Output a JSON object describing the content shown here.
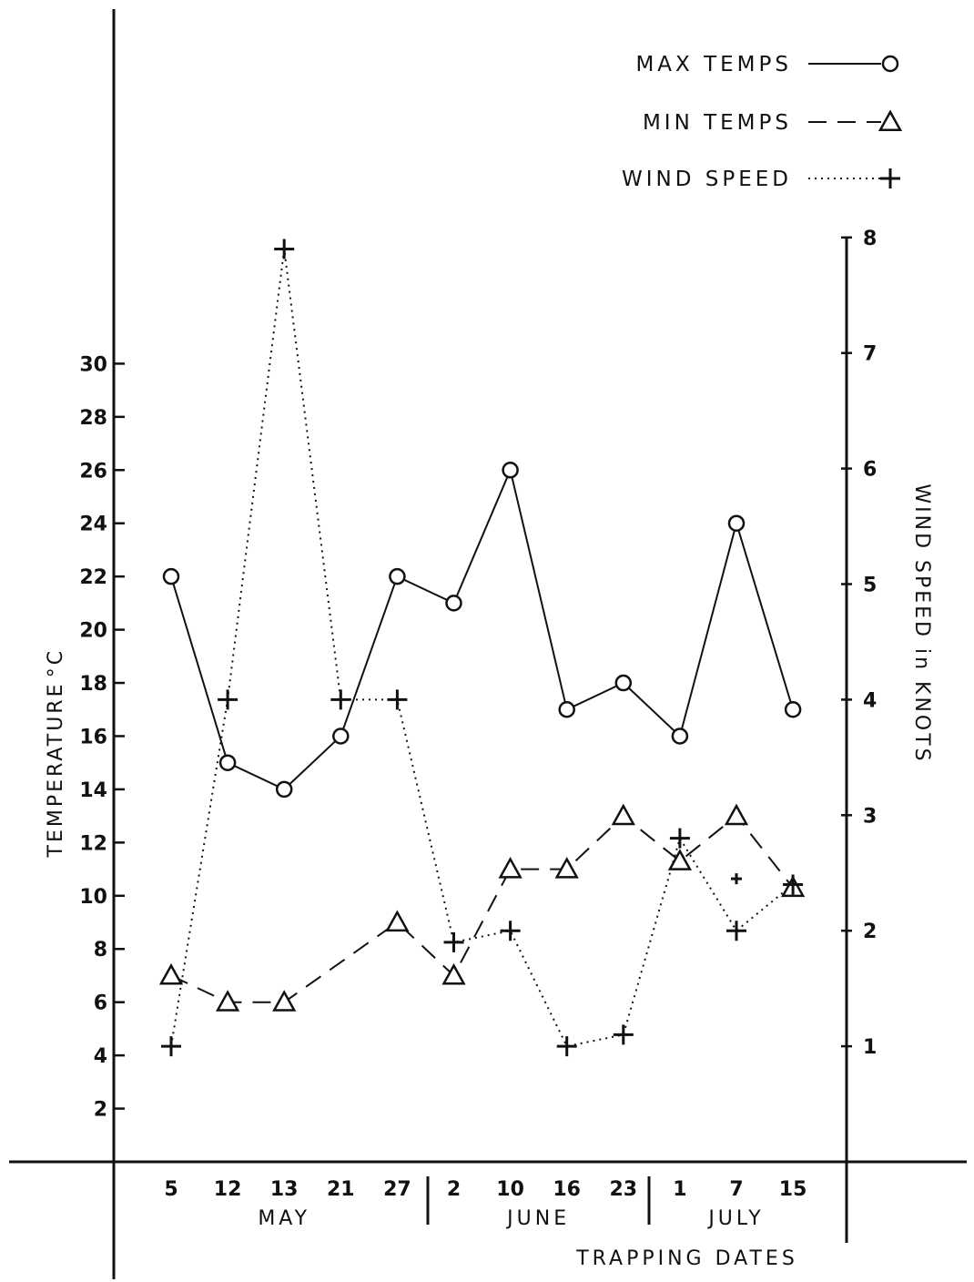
{
  "chart_data": {
    "type": "line",
    "xlabel": "TRAPPING DATES",
    "ylabel": "TEMPERATURE",
    "ylabel_unit": "°C",
    "y2label": "WIND SPEED in KNOTS",
    "categories": [
      "5",
      "12",
      "13",
      "21",
      "27",
      "2",
      "10",
      "16",
      "23",
      "1",
      "7",
      "15"
    ],
    "months": [
      {
        "label": "MAY",
        "start": 0,
        "end": 4
      },
      {
        "label": "JUNE",
        "start": 5,
        "end": 8
      },
      {
        "label": "JULY",
        "start": 9,
        "end": 11
      }
    ],
    "ylim": [
      0,
      32
    ],
    "yticks": [
      2,
      4,
      6,
      8,
      10,
      12,
      14,
      16,
      18,
      20,
      22,
      24,
      26,
      28,
      30
    ],
    "y2lim": [
      0,
      8
    ],
    "y2ticks": [
      1,
      2,
      3,
      4,
      5,
      6,
      7,
      8
    ],
    "series": [
      {
        "name": "MAX TEMPS",
        "axis": "left",
        "marker": "circle",
        "style": "solid",
        "values": [
          22,
          15,
          14,
          16,
          22,
          21,
          26,
          17,
          18,
          16,
          24,
          17
        ]
      },
      {
        "name": "MIN TEMPS",
        "axis": "left",
        "marker": "triangle",
        "style": "dashed",
        "values": [
          7,
          6,
          6,
          null,
          9,
          7,
          11,
          11,
          13,
          11.3,
          13,
          10.3
        ]
      },
      {
        "name": "WIND SPEED",
        "axis": "right",
        "marker": "plus",
        "style": "dotted",
        "values": [
          1,
          4,
          7.9,
          4,
          4,
          1.9,
          2,
          1,
          1.1,
          2.8,
          2,
          2.4
        ]
      }
    ],
    "annotations": [
      {
        "type": "plus-marker",
        "category_index": 10,
        "axis": "right",
        "value": 2.45
      }
    ],
    "legend": {
      "placement": "top-right"
    }
  }
}
